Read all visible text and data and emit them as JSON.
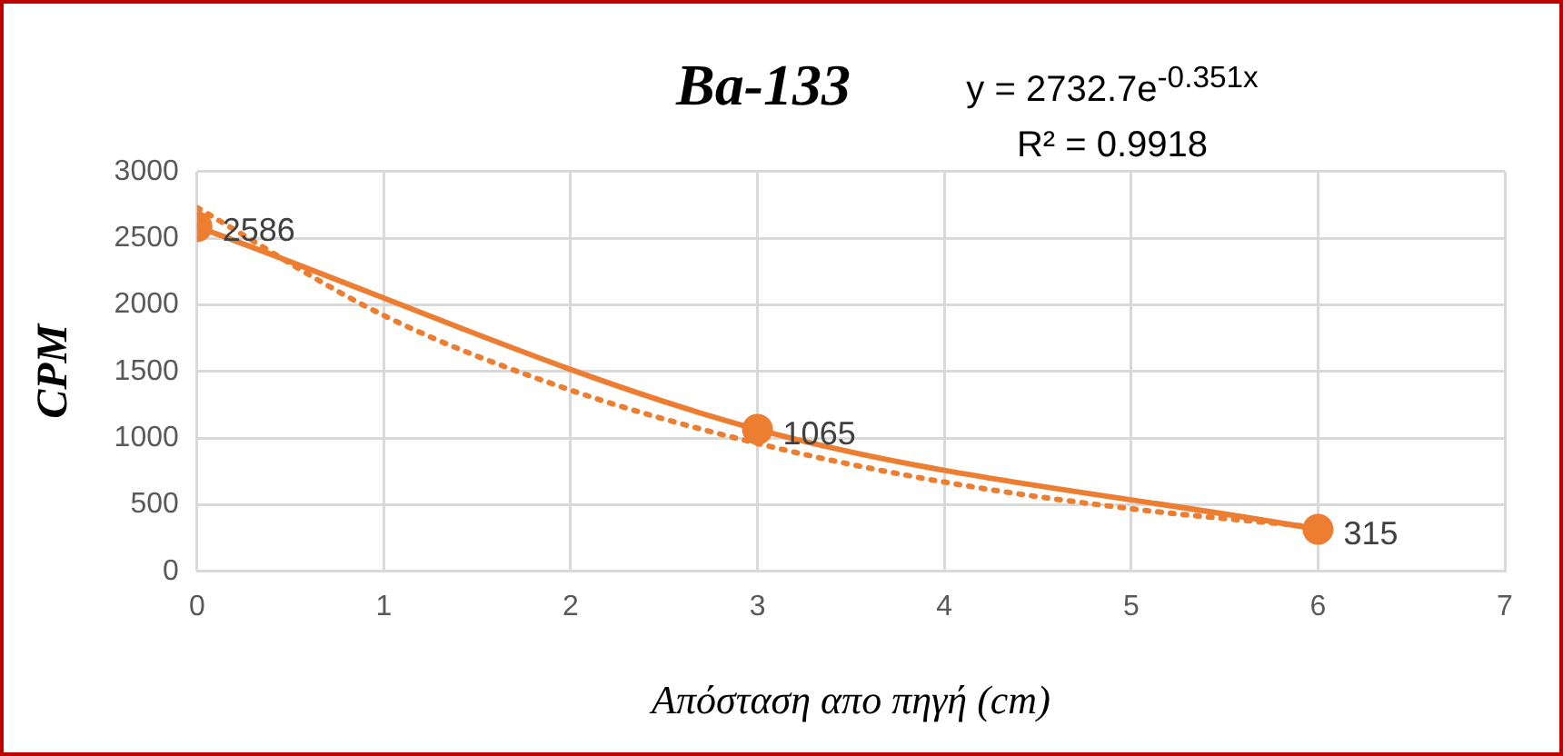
{
  "chart_data": {
    "type": "line",
    "title": "Ba-133",
    "xlabel": "Απόσταση απο πηγή (cm)",
    "ylabel": "CPM",
    "annotations": [
      "y = 2732.7e$^{-0.351x}$",
      "R² = 0.9918"
    ],
    "x": [
      0,
      3,
      6
    ],
    "series": [
      {
        "color": "#ed7d31",
        "values": [
          2586,
          1065,
          315
        ],
        "value_labels": [
          "2586",
          "1065",
          "315"
        ],
        "marker": "circle",
        "line_style": "solid"
      },
      {
        "type": "line",
        "color": "#ed7d31",
        "x": [
          0,
          1,
          2,
          3,
          4,
          5,
          6
        ],
        "values": [
          2730,
          1920,
          1360,
          960,
          670,
          470,
          330
        ],
        "marker": "none",
        "line_style": "dotted"
      }
    ],
    "xlim": [
      0,
      7
    ],
    "xticks": [
      0,
      1,
      2,
      3,
      4,
      5,
      6,
      7
    ],
    "ylim": [
      0,
      3000
    ],
    "yticks": [
      0,
      500,
      1000,
      1500,
      2000,
      2500,
      3000
    ],
    "grid": true
  }
}
